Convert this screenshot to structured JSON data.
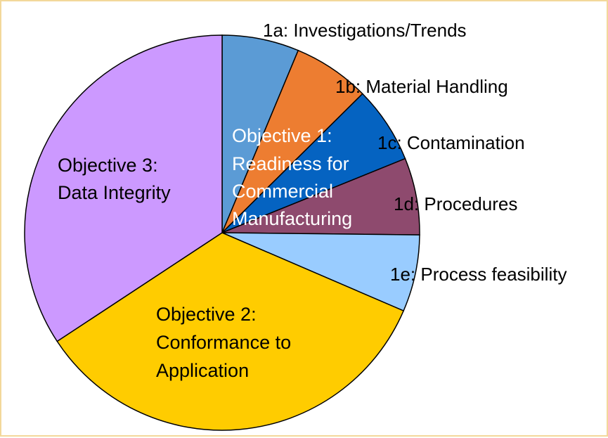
{
  "chart_data": {
    "type": "pie",
    "title": "",
    "slices": [
      {
        "label": "1a: Investigations/Trends",
        "value": 6.3,
        "color": "#5b9bd5"
      },
      {
        "label": "1b: Material Handling",
        "value": 6.3,
        "color": "#ed7d31"
      },
      {
        "label": "1c: Contamination",
        "value": 6.3,
        "color": "#0563c1"
      },
      {
        "label": "1d: Procedures",
        "value": 6.3,
        "color": "#8e4a6e"
      },
      {
        "label": "1e: Process feasibility",
        "value": 6.3,
        "color": "#99ccff"
      },
      {
        "label": "Objective 2: Conformance to Application",
        "value": 34.3,
        "color": "#ffcc00"
      },
      {
        "label": "Objective 3: Data Integrity",
        "value": 34.3,
        "color": "#cc99ff"
      }
    ],
    "groups": [
      {
        "label": "Objective 1: Readiness for Commercial Manufacturing",
        "slices": [
          "1a",
          "1b",
          "1c",
          "1d",
          "1e"
        ],
        "value": 31.4
      }
    ],
    "overlay_labels": {
      "objective1": [
        "Objective 1:",
        "Readiness for",
        "Commercial",
        "Manufacturing"
      ],
      "objective2": [
        "Objective 2:",
        "Conformance to",
        "Application"
      ],
      "objective3": [
        "Objective 3:",
        "Data Integrity"
      ]
    },
    "colors": {
      "border": "#f3d89a",
      "stroke": "#000000",
      "inner_text_light": "#ffffff"
    }
  }
}
